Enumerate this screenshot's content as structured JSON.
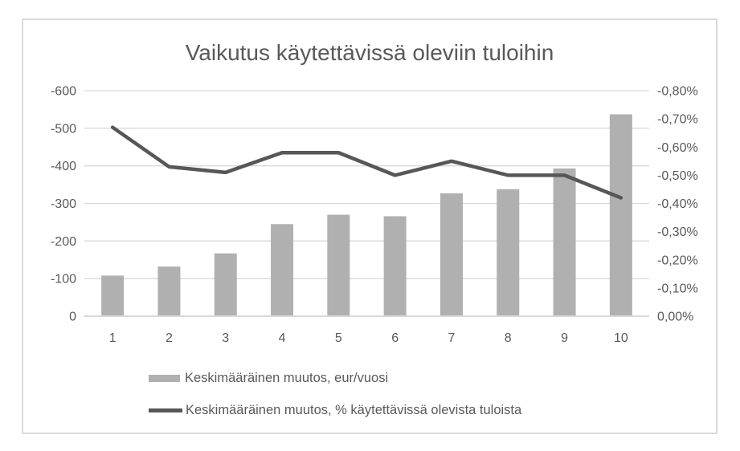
{
  "chart_frame": {
    "border_color": "#D9D9D9",
    "background": "#FFFFFF"
  },
  "chart_data": {
    "type": "combo-bar-line",
    "title": "Vaikutus käytettävissä oleviin tuloihin",
    "categories": [
      "1",
      "2",
      "3",
      "4",
      "5",
      "6",
      "7",
      "8",
      "9",
      "10"
    ],
    "series": [
      {
        "name": "Keskimääräinen muutos, eur/vuosi",
        "type": "bar",
        "axis": "left",
        "color": "#B0B0B0",
        "values": [
          -108,
          -132,
          -167,
          -245,
          -270,
          -266,
          -327,
          -338,
          -393,
          -537
        ]
      },
      {
        "name": "Keskimääräinen muutos, % käytettävissä olevista tuloista",
        "type": "line",
        "axis": "right",
        "color": "#575757",
        "values": [
          -0.67,
          -0.53,
          -0.51,
          -0.58,
          -0.58,
          -0.5,
          -0.55,
          -0.5,
          -0.5,
          -0.42
        ]
      }
    ],
    "left_axis": {
      "min": -600,
      "max": 0,
      "inverted": true,
      "tick_labels": [
        "-600",
        "-500",
        "-400",
        "-300",
        "-200",
        "-100",
        "0"
      ]
    },
    "right_axis": {
      "min": -0.8,
      "max": 0,
      "inverted": true,
      "unit": "%",
      "tick_labels": [
        "-0,80%",
        "-0,70%",
        "-0,60%",
        "-0,50%",
        "-0,40%",
        "-0,30%",
        "-0,20%",
        "-0,10%",
        "0,00%"
      ]
    },
    "legend_position": "bottom",
    "grid": true,
    "gridline_color": "#D9D9D9",
    "text_color": "#595959"
  }
}
